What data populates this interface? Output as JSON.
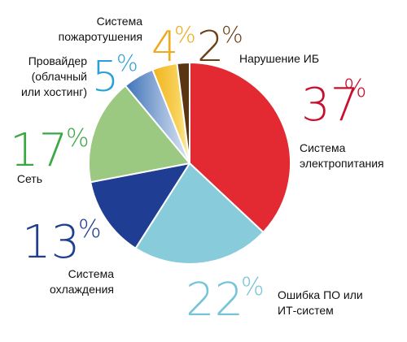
{
  "chart_data": {
    "type": "pie",
    "title": "",
    "slices": [
      {
        "label_lines": [
          "Система",
          "электропитания"
        ],
        "value": 37,
        "percent_text": "37",
        "percent_sign": "%",
        "color": "#e32931",
        "text_color": "#c8102e"
      },
      {
        "label_lines": [
          "Ошибка ПО или",
          "ИТ-систем"
        ],
        "value": 22,
        "percent_text": "22",
        "percent_sign": "%",
        "color": "#88ccdb",
        "text_color": "#76c4d7"
      },
      {
        "label_lines": [
          "Система",
          "охлаждения"
        ],
        "value": 13,
        "percent_text": "13",
        "percent_sign": "%",
        "color": "#1f3e93",
        "text_color": "#1f3e93"
      },
      {
        "label_lines": [
          "Сеть"
        ],
        "value": 17,
        "percent_text": "17",
        "percent_sign": "%",
        "color": "#9bc982",
        "text_color": "#3aa843"
      },
      {
        "label_lines": [
          "Провайдер",
          "(облачный",
          "или хостинг)"
        ],
        "value": 5,
        "percent_text": "5",
        "percent_sign": "%",
        "color": "#4a7fc2",
        "text_color": "#2b9fd6"
      },
      {
        "label_lines": [
          "Система",
          "пожаротушения"
        ],
        "value": 4,
        "percent_text": "4",
        "percent_sign": "%",
        "color": "#f4b522",
        "text_color": "#f1a91c"
      },
      {
        "label_lines": [
          "Нарушение ИБ"
        ],
        "value": 2,
        "percent_text": "2",
        "percent_sign": "%",
        "color": "#5a3513",
        "text_color": "#6a3f16"
      }
    ]
  }
}
